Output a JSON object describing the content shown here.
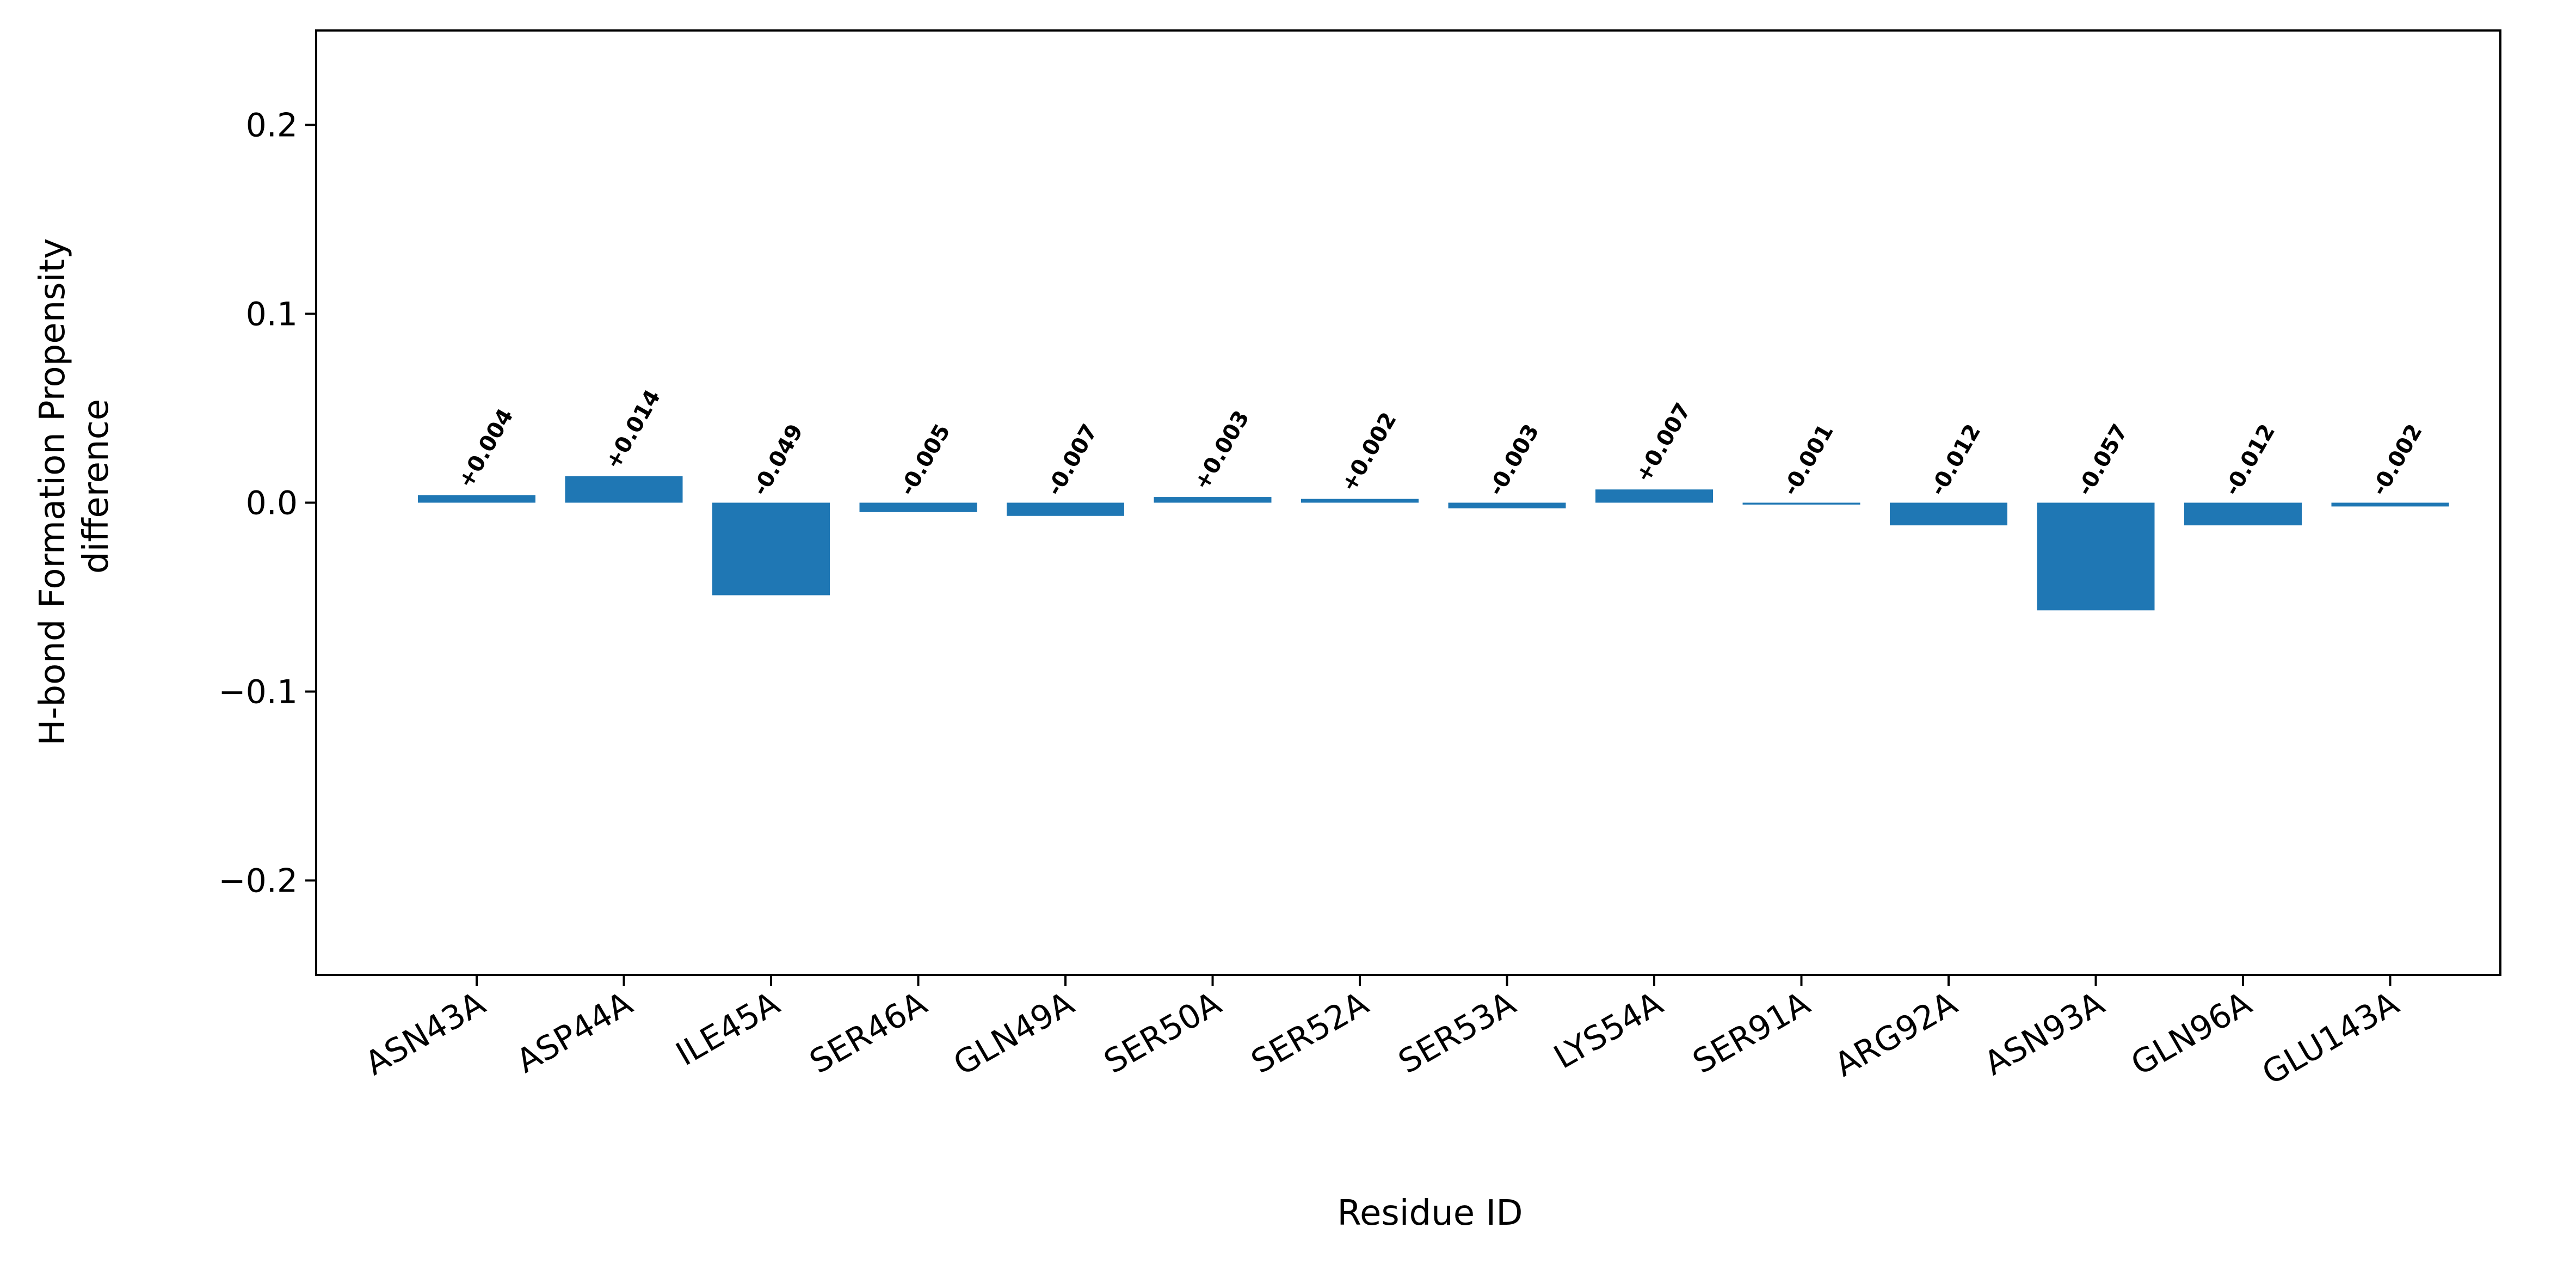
{
  "chart_data": {
    "type": "bar",
    "title": "",
    "xlabel": "Residue ID",
    "ylabel_lines": [
      "H-bond Formation Propensity",
      "difference"
    ],
    "categories": [
      "ASN43A",
      "ASP44A",
      "ILE45A",
      "SER46A",
      "GLN49A",
      "SER50A",
      "SER52A",
      "SER53A",
      "LYS54A",
      "SER91A",
      "ARG92A",
      "ASN93A",
      "GLN96A",
      "GLU143A"
    ],
    "values": [
      0.004,
      0.014,
      -0.049,
      -0.005,
      -0.007,
      0.003,
      0.002,
      -0.003,
      0.007,
      -0.001,
      -0.012,
      -0.057,
      -0.012,
      -0.002
    ],
    "value_labels": [
      "+0.004",
      "+0.014",
      "-0.049",
      "-0.005",
      "-0.007",
      "+0.003",
      "+0.002",
      "-0.003",
      "+0.007",
      "-0.001",
      "-0.012",
      "-0.057",
      "-0.012",
      "-0.002"
    ],
    "ylim": [
      -0.25,
      0.25
    ],
    "yticks": [
      -0.2,
      -0.1,
      0.0,
      0.1,
      0.2
    ],
    "ytick_labels": [
      "−0.2",
      "−0.1",
      "0.0",
      "0.1",
      "0.2"
    ],
    "bar_color": "#1f77b4",
    "grid": false,
    "legend": "none"
  }
}
